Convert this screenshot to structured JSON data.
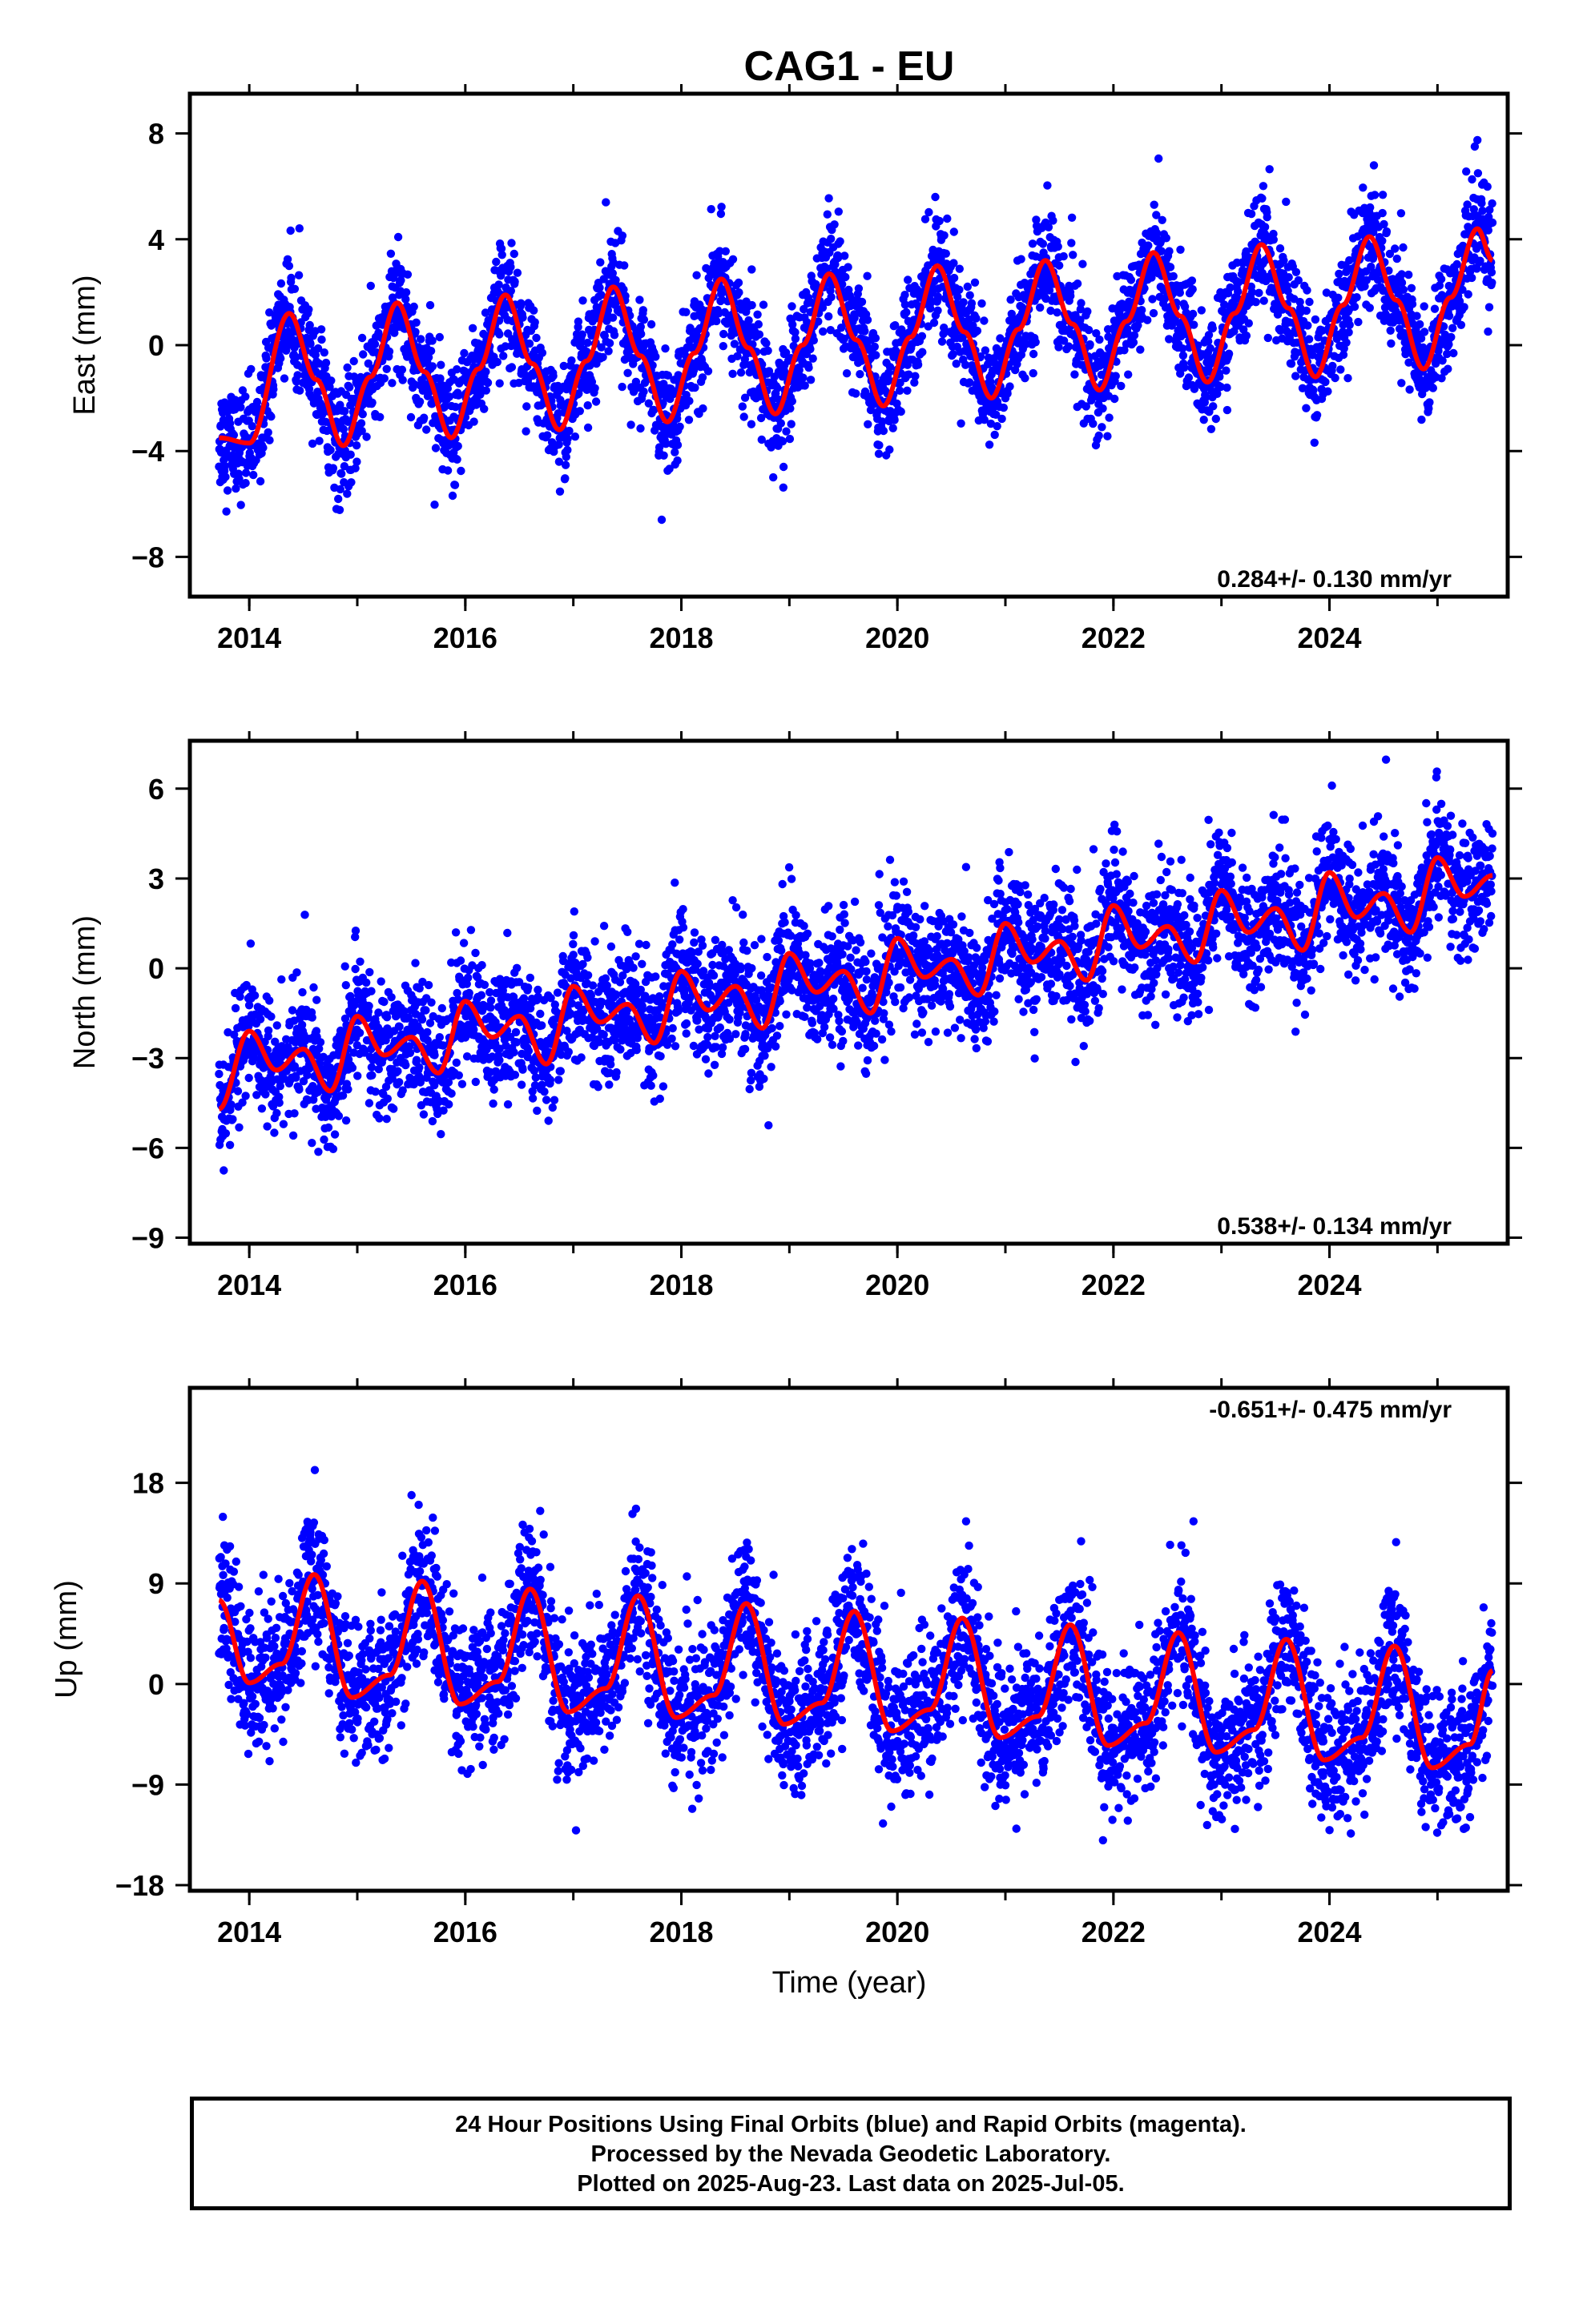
{
  "title": "CAG1 - EU",
  "xlabel": "Time (year)",
  "footer": {
    "line1": "24 Hour Positions Using Final Orbits (blue) and Rapid Orbits (magenta).",
    "line2": "Processed by the Nevada Geodetic Laboratory.",
    "line3": "Plotted on 2025-Aug-23. Last data on 2025-Jul-05."
  },
  "colors": {
    "points": "#0000ff",
    "fit": "#ff0000",
    "frame": "#000000"
  },
  "chart_data": [
    {
      "type": "scatter",
      "ylabel": "East (mm)",
      "rate": "0.284+/- 0.130 mm/yr",
      "xlim": [
        2013.45,
        2025.65
      ],
      "ylim": [
        -9.5,
        9.5
      ],
      "xticks": [
        2014,
        2016,
        2018,
        2020,
        2022,
        2024
      ],
      "yticks": [
        -8,
        -4,
        0,
        4,
        8
      ],
      "data_start": 2013.72,
      "data_end": 2025.51,
      "series": [
        {
          "x": [
            2013.72,
            2014.0,
            2014.37,
            2014.62,
            2014.87,
            2015.12,
            2015.37,
            2015.62,
            2015.87,
            2016.12,
            2016.37,
            2016.62,
            2016.87,
            2017.12,
            2017.37,
            2017.62,
            2017.87,
            2018.12,
            2018.37,
            2018.62,
            2018.87,
            2019.12,
            2019.37,
            2019.62,
            2019.87,
            2020.12,
            2020.37,
            2020.62,
            2020.87,
            2021.12,
            2021.37,
            2021.62,
            2021.87,
            2022.12,
            2022.37,
            2022.62,
            2022.87,
            2023.12,
            2023.37,
            2023.62,
            2023.87,
            2024.12,
            2024.37,
            2024.62,
            2024.87,
            2025.12,
            2025.37,
            2025.51
          ],
          "y": [
            -3.5,
            -3.7,
            1.2,
            -1.3,
            -3.8,
            -1.2,
            1.6,
            -1.0,
            -3.5,
            -0.9,
            1.9,
            -0.7,
            -3.2,
            -0.6,
            2.2,
            -0.4,
            -2.9,
            -0.3,
            2.5,
            -0.1,
            -2.6,
            0.0,
            2.7,
            0.2,
            -2.3,
            0.3,
            3.0,
            0.5,
            -2.0,
            0.6,
            3.2,
            0.8,
            -1.7,
            0.9,
            3.5,
            1.1,
            -1.4,
            1.2,
            3.8,
            1.4,
            -1.2,
            1.5,
            4.1,
            1.7,
            -0.9,
            1.8,
            4.4,
            3.2
          ]
        }
      ]
    },
    {
      "type": "scatter",
      "ylabel": "North (mm)",
      "rate": "0.538+/- 0.134 mm/yr",
      "xlim": [
        2013.45,
        2025.65
      ],
      "ylim": [
        -9.2,
        7.6
      ],
      "xticks": [
        2014,
        2016,
        2018,
        2020,
        2022,
        2024
      ],
      "yticks": [
        -9,
        -6,
        -3,
        0,
        3,
        6
      ],
      "data_start": 2013.72,
      "data_end": 2025.51,
      "series": [
        {
          "x": [
            2013.72,
            2014.0,
            2014.25,
            2014.5,
            2014.75,
            2015.0,
            2015.25,
            2015.5,
            2015.75,
            2016.0,
            2016.25,
            2016.5,
            2016.75,
            2017.0,
            2017.25,
            2017.5,
            2017.75,
            2018.0,
            2018.25,
            2018.5,
            2018.75,
            2019.0,
            2019.25,
            2019.5,
            2019.75,
            2020.0,
            2020.25,
            2020.5,
            2020.75,
            2021.0,
            2021.25,
            2021.5,
            2021.75,
            2022.0,
            2022.25,
            2022.5,
            2022.75,
            2023.0,
            2023.25,
            2023.5,
            2023.75,
            2024.0,
            2024.25,
            2024.5,
            2024.75,
            2025.0,
            2025.25,
            2025.51
          ],
          "y": [
            -4.7,
            -2.1,
            -3.4,
            -2.7,
            -4.1,
            -1.6,
            -2.9,
            -2.3,
            -3.5,
            -1.1,
            -2.3,
            -1.6,
            -3.2,
            -0.6,
            -1.8,
            -1.2,
            -2.5,
            -0.1,
            -1.4,
            -0.6,
            -2.0,
            0.5,
            -0.8,
            -0.1,
            -1.5,
            1.0,
            -0.3,
            0.3,
            -0.9,
            1.5,
            0.2,
            0.9,
            -0.4,
            2.1,
            0.7,
            1.4,
            0.2,
            2.6,
            1.2,
            2.0,
            0.6,
            3.2,
            1.7,
            2.5,
            1.2,
            3.7,
            2.4,
            3.1
          ]
        }
      ]
    },
    {
      "type": "scatter",
      "ylabel": "Up (mm)",
      "rate": "-0.651+/- 0.475 mm/yr",
      "xlim": [
        2013.45,
        2025.65
      ],
      "ylim": [
        -18.5,
        26.5
      ],
      "xticks": [
        2014,
        2016,
        2018,
        2020,
        2022,
        2024
      ],
      "yticks": [
        -18,
        -9,
        0,
        9,
        18
      ],
      "data_start": 2013.72,
      "data_end": 2025.51,
      "series": [
        {
          "x": [
            2013.72,
            2014.0,
            2014.3,
            2014.6,
            2014.95,
            2015.3,
            2015.6,
            2015.95,
            2016.3,
            2016.6,
            2016.95,
            2017.3,
            2017.6,
            2017.95,
            2018.3,
            2018.6,
            2018.95,
            2019.3,
            2019.6,
            2019.95,
            2020.3,
            2020.6,
            2020.95,
            2021.3,
            2021.6,
            2021.95,
            2022.3,
            2022.6,
            2022.95,
            2023.3,
            2023.6,
            2023.95,
            2024.3,
            2024.6,
            2024.95,
            2025.3,
            2025.51
          ],
          "y": [
            7.5,
            0.1,
            1.8,
            9.8,
            -1.2,
            0.8,
            9.2,
            -1.8,
            0.2,
            8.5,
            -2.5,
            -0.4,
            7.9,
            -3.0,
            -1.0,
            7.2,
            -3.6,
            -1.7,
            6.5,
            -4.2,
            -2.3,
            5.9,
            -4.8,
            -2.9,
            5.3,
            -5.5,
            -3.5,
            4.6,
            -6.1,
            -4.1,
            4.0,
            -6.8,
            -4.8,
            3.4,
            -7.5,
            -5.4,
            1.2
          ]
        }
      ]
    }
  ]
}
